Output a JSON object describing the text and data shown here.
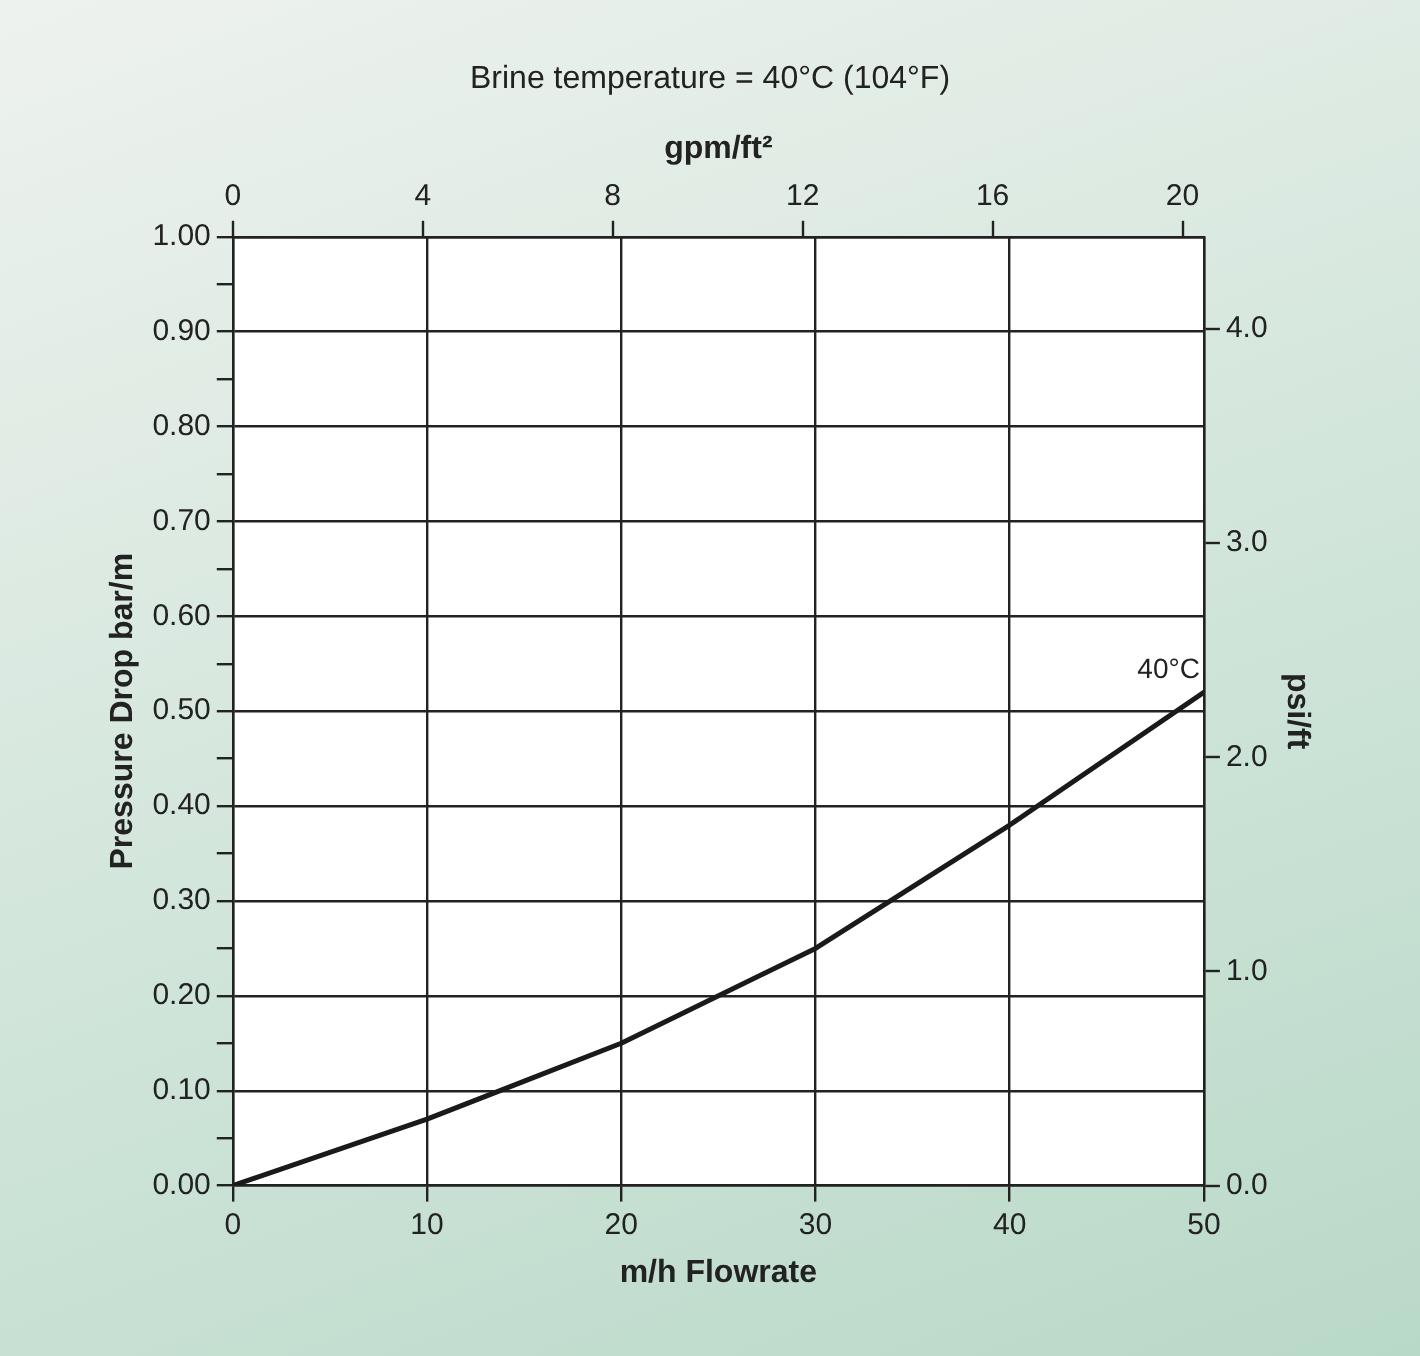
{
  "chart_data": {
    "type": "line",
    "title": "Brine temperature = 40°C (104°F)",
    "xlabel": "m/h Flowrate",
    "x2label": "gpm/ft²",
    "ylabel": "Pressure Drop bar/m",
    "y2label": "psi/ft",
    "x": [
      0,
      10,
      20,
      30,
      40,
      50
    ],
    "series": [
      {
        "color": "#1a1a1a",
        "values": [
          0,
          0.07,
          0.15,
          0.25,
          0.38,
          0.52
        ]
      }
    ],
    "xlim": [
      0,
      50
    ],
    "xticks": [
      0,
      10,
      20,
      30,
      40,
      50
    ],
    "x2lim": [
      0,
      20.45
    ],
    "x2ticks": [
      0,
      4,
      8,
      12,
      16,
      20
    ],
    "ylim": [
      0,
      1
    ],
    "yticks": [
      {
        "value": 0,
        "label": "0.00"
      },
      {
        "value": 0.05,
        "label": null
      },
      {
        "value": 0.1,
        "label": "0.10"
      },
      {
        "value": 0.15,
        "label": null
      },
      {
        "value": 0.2,
        "label": "0.20"
      },
      {
        "value": 0.25,
        "label": null
      },
      {
        "value": 0.3,
        "label": "0.30"
      },
      {
        "value": 0.35,
        "label": null
      },
      {
        "value": 0.4,
        "label": "0.40"
      },
      {
        "value": 0.45,
        "label": null
      },
      {
        "value": 0.5,
        "label": "0.50"
      },
      {
        "value": 0.55,
        "label": null
      },
      {
        "value": 0.6,
        "label": "0.60"
      },
      {
        "value": 0.65,
        "label": null
      },
      {
        "value": 0.7,
        "label": "0.70"
      },
      {
        "value": 0.75,
        "label": null
      },
      {
        "value": 0.8,
        "label": "0.80"
      },
      {
        "value": 0.85,
        "label": null
      },
      {
        "value": 0.9,
        "label": "0.90"
      },
      {
        "value": 0.95,
        "label": null
      },
      {
        "value": 1,
        "label": "1.00"
      }
    ],
    "y2lim": [
      0,
      4.43
    ],
    "y2ticks": [
      {
        "value": 0,
        "label": "0.0"
      },
      {
        "value": 1,
        "label": "1.0"
      },
      {
        "value": 2,
        "label": "2.0"
      },
      {
        "value": 3,
        "label": "3.0"
      },
      {
        "value": 4,
        "label": "4.0"
      }
    ],
    "annotations": [
      {
        "text": "40°C",
        "x": 50,
        "y": 0.52
      }
    ],
    "grid": true
  }
}
